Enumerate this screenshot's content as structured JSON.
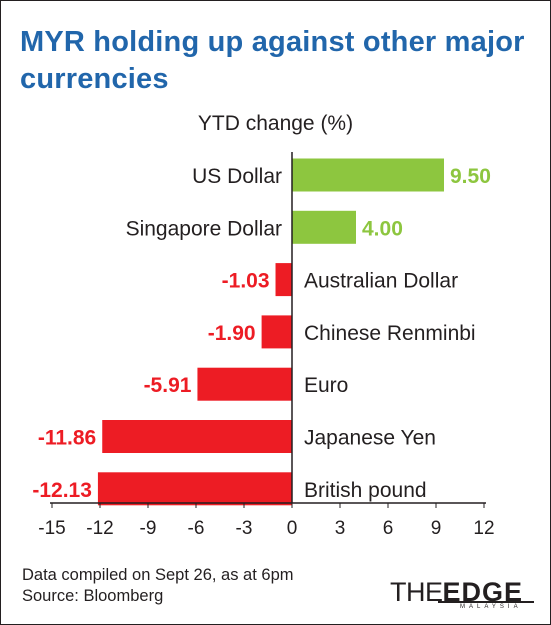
{
  "chart_data": {
    "type": "bar",
    "orientation": "horizontal",
    "title": "MYR holding up against other major currencies",
    "subtitle": "YTD change (%)",
    "categories": [
      "US Dollar",
      "Singapore Dollar",
      "Australian Dollar",
      "Chinese Renminbi",
      "Euro",
      "Japanese Yen",
      "British pound"
    ],
    "values": [
      9.5,
      4.0,
      -1.03,
      -1.9,
      -5.91,
      -11.86,
      -12.13
    ],
    "value_labels": [
      "9.50",
      "4.00",
      "-1.03",
      "-1.90",
      "-5.91",
      "-11.86",
      "-12.13"
    ],
    "xlim": [
      -15,
      12
    ],
    "xticks": [
      -15,
      -12,
      -9,
      -6,
      -3,
      0,
      3,
      6,
      9,
      12
    ],
    "xtick_labels": [
      "-15",
      "-12",
      "-9",
      "-6",
      "-3",
      "0",
      "3",
      "6",
      "9",
      "12"
    ],
    "grid": false,
    "colors": {
      "positive": "#8dc63f",
      "negative": "#ed1c24",
      "title": "#2166ab",
      "axis": "#231f20"
    }
  },
  "footnote": {
    "line1": "Data compiled on Sept 26, as at 6pm",
    "line2": "Source: Bloomberg"
  },
  "logo": {
    "the": "THE",
    "edge": "EDGE",
    "sub": "MALAYSIA"
  }
}
